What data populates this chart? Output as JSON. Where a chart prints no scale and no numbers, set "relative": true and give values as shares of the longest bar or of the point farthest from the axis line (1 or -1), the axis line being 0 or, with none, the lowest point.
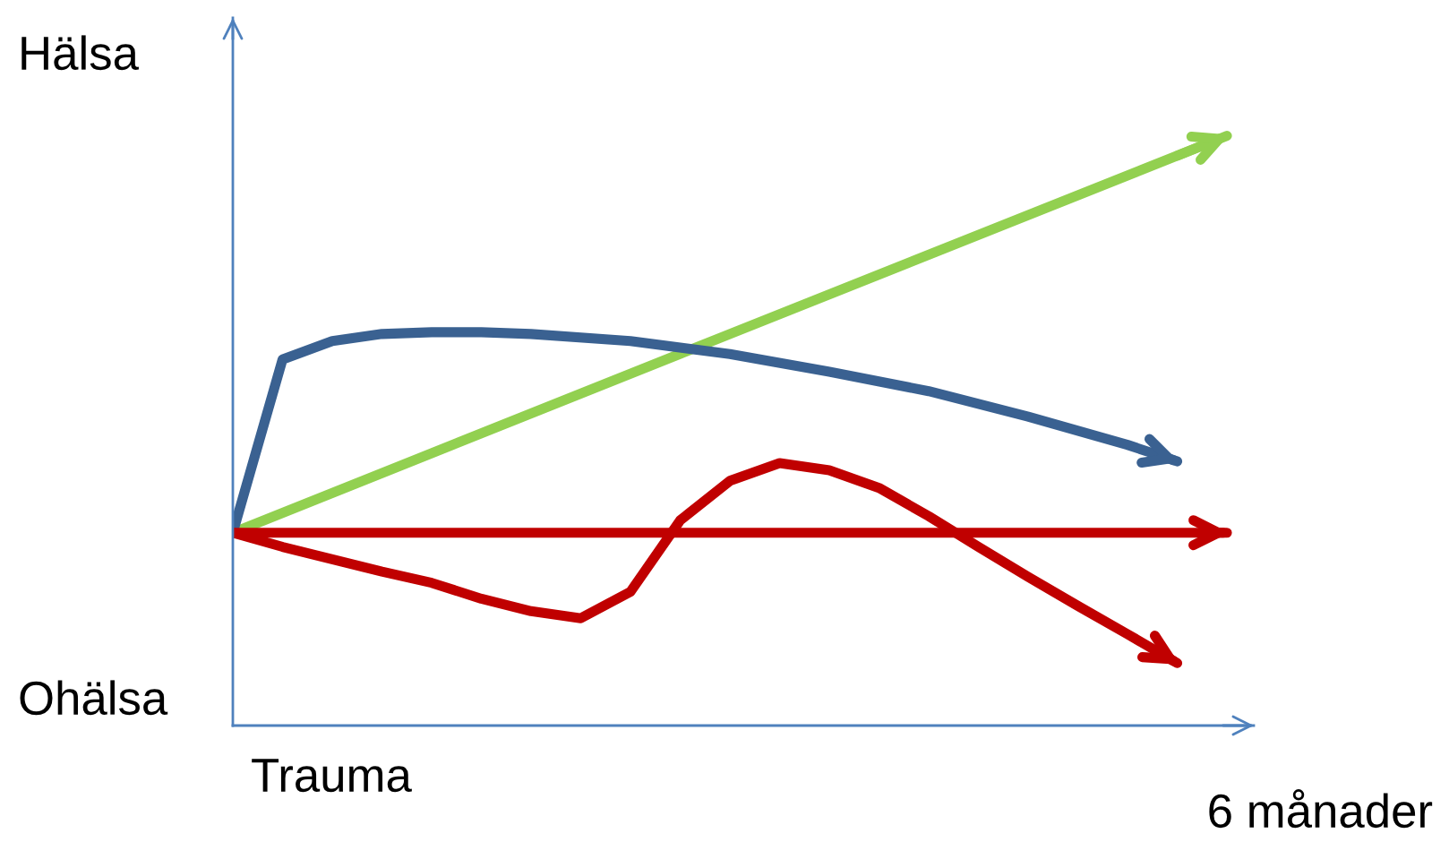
{
  "chart_data": {
    "type": "line",
    "relative": true,
    "legend": false,
    "marker": "none",
    "line_style": "solid",
    "categories": [
      null,
      null,
      null,
      null,
      null,
      null,
      null,
      null,
      null,
      null,
      null,
      null,
      null,
      null,
      null,
      null,
      null,
      null,
      null,
      null,
      null
    ],
    "series": [
      {
        "color": "#92d050",
        "values": [
          0.327,
          null,
          null,
          null,
          null,
          null,
          null,
          null,
          null,
          null,
          0.664,
          null,
          null,
          null,
          null,
          null,
          null,
          null,
          null,
          null,
          1.0
        ]
      },
      {
        "color": "#3a6191",
        "values": [
          0.327,
          0.621,
          0.652,
          0.664,
          0.667,
          0.667,
          0.664,
          null,
          0.652,
          null,
          0.63,
          null,
          0.6,
          null,
          0.567,
          null,
          0.524,
          null,
          0.476,
          0.448,
          null
        ]
      },
      {
        "color": "#c00000",
        "values": [
          0.327,
          0.327,
          0.327,
          0.327,
          0.327,
          0.327,
          0.327,
          0.327,
          0.327,
          0.327,
          0.327,
          0.327,
          0.327,
          0.327,
          0.327,
          0.327,
          0.327,
          0.327,
          0.327,
          0.327,
          0.327
        ]
      },
      {
        "color": "#c00000",
        "values": [
          0.327,
          0.303,
          0.282,
          0.261,
          0.242,
          0.215,
          0.194,
          0.182,
          0.227,
          0.348,
          0.415,
          0.445,
          0.433,
          0.403,
          0.355,
          0.303,
          0.252,
          0.203,
          0.155,
          0.106,
          null
        ]
      }
    ],
    "annotations": [
      "Hälsa",
      "Ohälsa",
      "Trauma",
      "6 månader"
    ]
  }
}
